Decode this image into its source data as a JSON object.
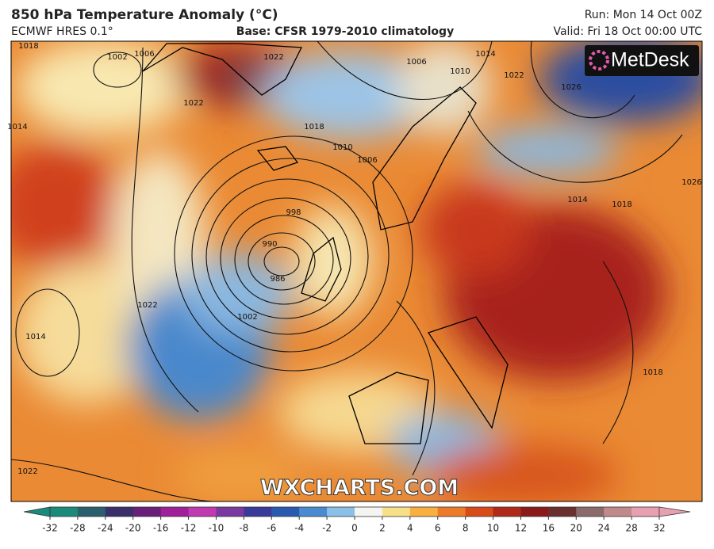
{
  "header": {
    "title": "850 hPa Temperature Anomaly (°C)",
    "model": "ECMWF HRES 0.1°",
    "base": "Base: CFSR 1979-2010 climatology",
    "run": "Run: Mon 14 Oct 00Z",
    "valid": "Valid: Fri 18 Oct 00:00 UTC"
  },
  "logo": "MetDesk",
  "watermark": "WXCHARTS.COM",
  "isobar_labels": [
    "1018",
    "1002",
    "1006",
    "1014",
    "1022",
    "1022",
    "1018",
    "1010",
    "1006",
    "998",
    "990",
    "986",
    "1002",
    "1022",
    "1014",
    "1022",
    "1006",
    "1010",
    "1014",
    "1022",
    "1026",
    "1014",
    "1018",
    "1026",
    "1018"
  ],
  "colorbar": {
    "ticks": [
      -32,
      -28,
      -24,
      -20,
      -16,
      -12,
      -10,
      -8,
      -6,
      -4,
      -2,
      0,
      2,
      4,
      6,
      8,
      10,
      12,
      16,
      20,
      24,
      28,
      32
    ],
    "colors": [
      "#1a8a7a",
      "#2a5f70",
      "#3a2f6a",
      "#6a1f7a",
      "#a0209a",
      "#c03ab0",
      "#7a3aa0",
      "#3a3a9a",
      "#2a5ab0",
      "#4a8ad0",
      "#8ac0e8",
      "#f4f4f0",
      "#f8e08a",
      "#f8b040",
      "#ec7a28",
      "#d84a1a",
      "#b02a1a",
      "#8a1a1a",
      "#6a3030",
      "#8a6a6a",
      "#c08a8a",
      "#e8a0b0"
    ]
  }
}
